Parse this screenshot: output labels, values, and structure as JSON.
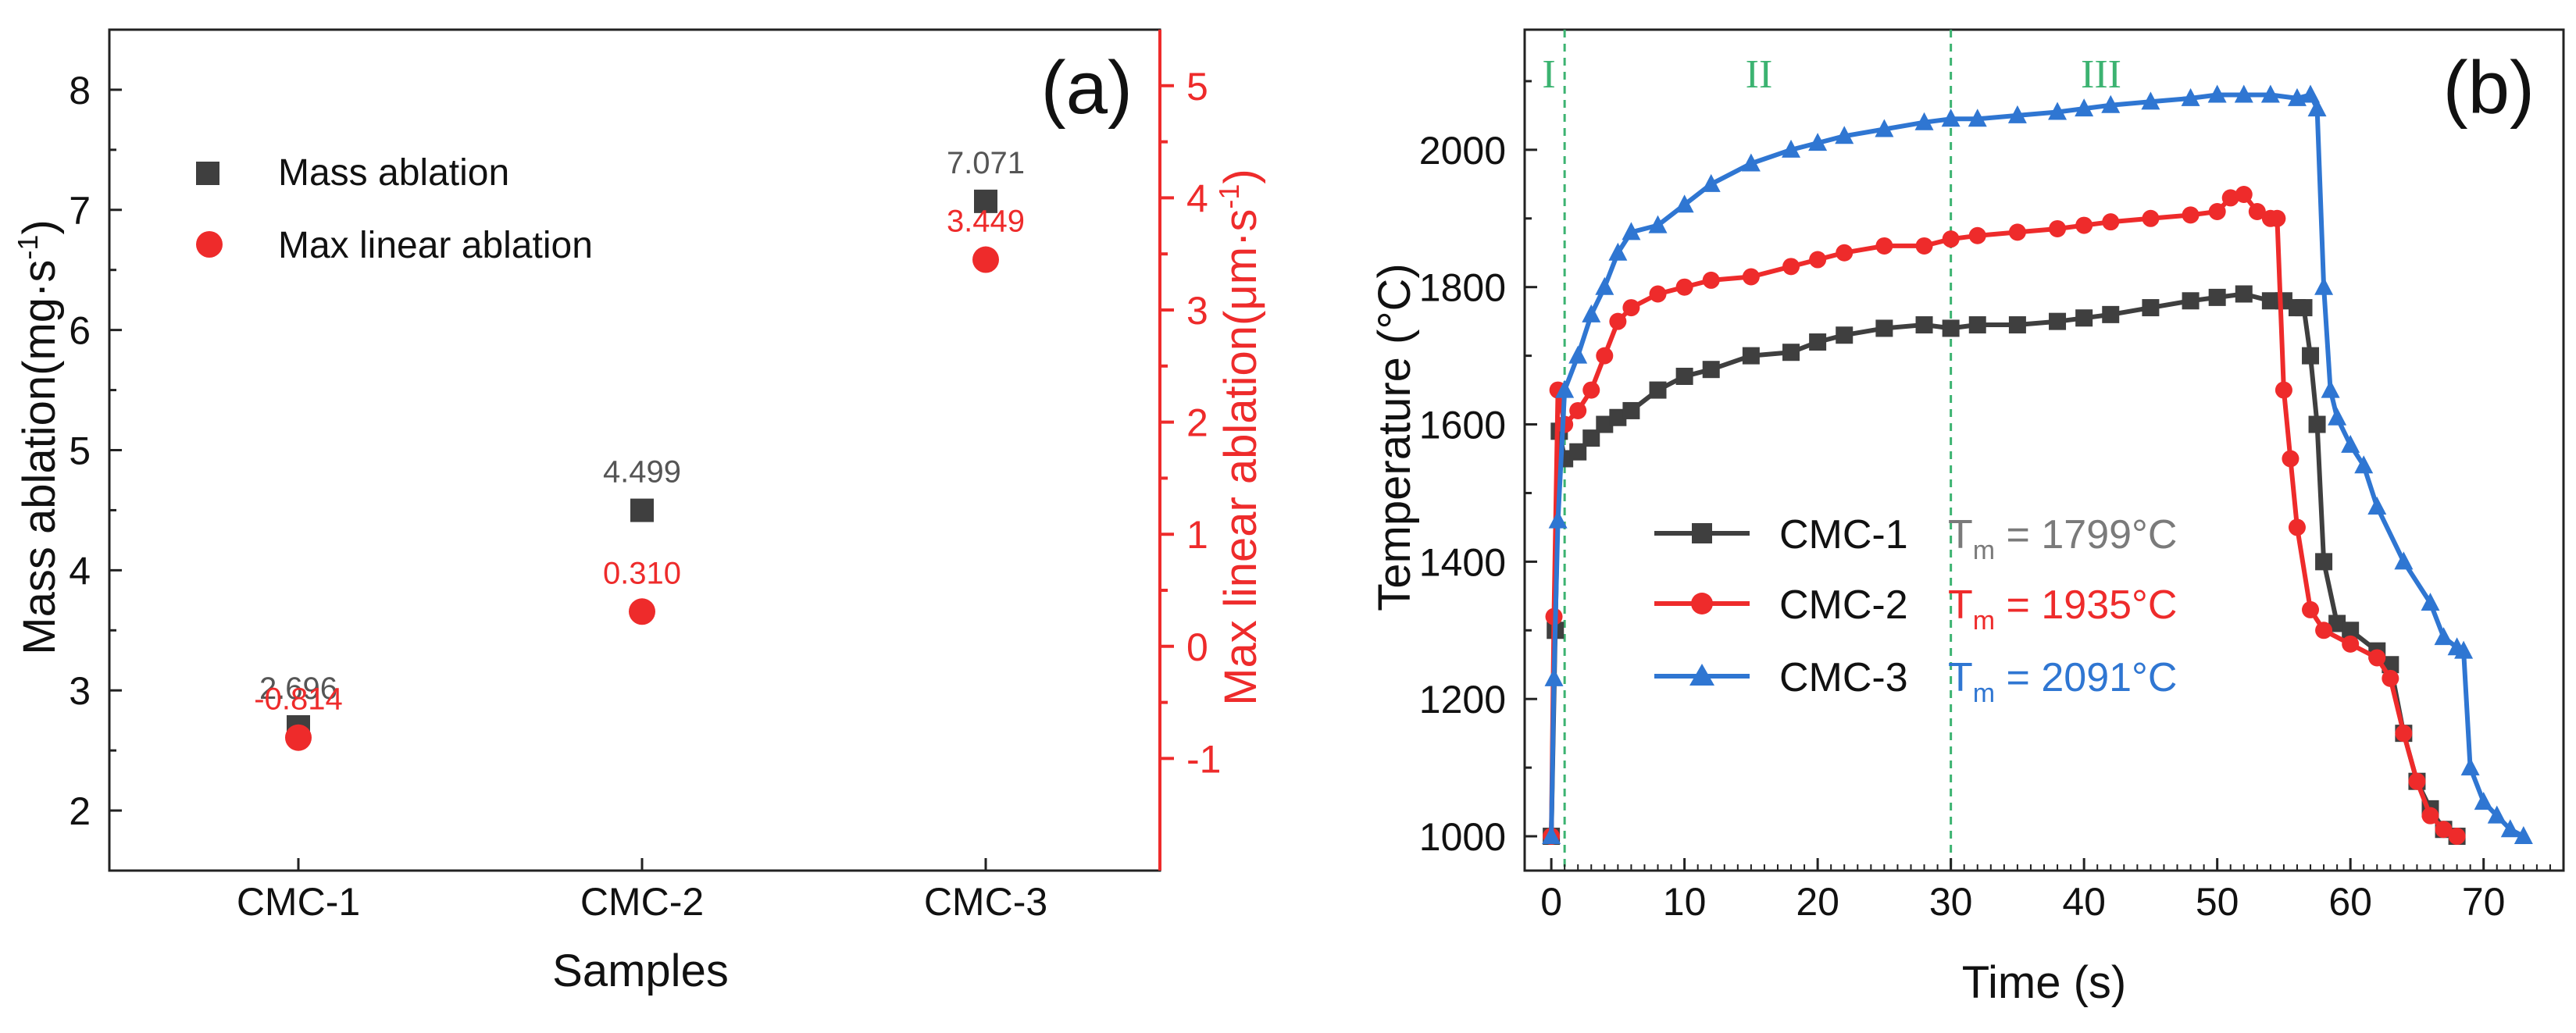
{
  "chart_data": [
    {
      "type": "scatter",
      "panel_label": "(a)",
      "title": "",
      "xlabel": "Samples",
      "ylabel": "Mass ablation(mg·s",
      "ylabel_sup": "-1",
      "ylabel_close": ")",
      "y2label": "Max linear ablation(μm·s",
      "y2label_sup": "-1",
      "y2label_close": ")",
      "categories": [
        "CMC-1",
        "CMC-2",
        "CMC-3"
      ],
      "ylim": [
        1.5,
        8.5
      ],
      "yticks": [
        "2",
        "3",
        "4",
        "5",
        "6",
        "7",
        "8"
      ],
      "y2lim": [
        -2.0,
        5.5
      ],
      "y2ticks": [
        "-1",
        "0",
        "1",
        "2",
        "3",
        "4",
        "5"
      ],
      "legend_position": "top-left",
      "colors": {
        "primary": "#3f3f3f",
        "secondary": "#ee2b2b"
      },
      "series": [
        {
          "name": "Mass ablation",
          "axis": "left",
          "marker": "square",
          "values": [
            2.696,
            4.499,
            7.071
          ],
          "labels": [
            "2.696",
            "4.499",
            "7.071"
          ]
        },
        {
          "name": "Max linear ablation",
          "axis": "right",
          "marker": "circle",
          "values": [
            -0.814,
            0.31,
            3.449
          ],
          "labels": [
            "-0.814",
            "0.310",
            "3.449"
          ]
        }
      ]
    },
    {
      "type": "line",
      "panel_label": "(b)",
      "title": "",
      "xlabel": "Time (s)",
      "ylabel": "Temperature (°C)",
      "xlim": [
        -2,
        76
      ],
      "xticks": [
        "0",
        "10",
        "20",
        "30",
        "40",
        "50",
        "60",
        "70"
      ],
      "ylim": [
        950,
        2175
      ],
      "yticks": [
        "1000",
        "1200",
        "1400",
        "1600",
        "1800",
        "2000"
      ],
      "stage_lines_x": [
        1,
        30
      ],
      "stage_labels": [
        "I",
        "II",
        "III"
      ],
      "stage_color": "#3cb371",
      "legend_position": "bottom-center",
      "series": [
        {
          "name": "CMC-1",
          "marker": "square",
          "color": "#3f3f3f",
          "tm_label": "T",
          "tm_sub": "m",
          "tm_value": " = 1799°C",
          "x": [
            0,
            0.3,
            0.6,
            1,
            2,
            3,
            4,
            5,
            6,
            8,
            10,
            12,
            15,
            18,
            20,
            22,
            25,
            28,
            30,
            32,
            35,
            38,
            40,
            42,
            45,
            48,
            50,
            52,
            54,
            55,
            56,
            56.5,
            57,
            57.5,
            58,
            59,
            60,
            62,
            63,
            64,
            65,
            66,
            67,
            68
          ],
          "y": [
            1000,
            1300,
            1590,
            1550,
            1560,
            1580,
            1600,
            1610,
            1620,
            1650,
            1670,
            1680,
            1700,
            1705,
            1720,
            1730,
            1740,
            1745,
            1740,
            1745,
            1745,
            1750,
            1755,
            1760,
            1770,
            1780,
            1785,
            1790,
            1780,
            1780,
            1770,
            1770,
            1700,
            1600,
            1400,
            1310,
            1300,
            1270,
            1250,
            1150,
            1080,
            1040,
            1010,
            1000
          ]
        },
        {
          "name": "CMC-2",
          "marker": "circle",
          "color": "#ee2b2b",
          "tm_label": "T",
          "tm_sub": "m",
          "tm_value": " = 1935°C",
          "x": [
            0,
            0.2,
            0.5,
            1,
            2,
            3,
            4,
            5,
            6,
            8,
            10,
            12,
            15,
            18,
            20,
            22,
            25,
            28,
            30,
            32,
            35,
            38,
            40,
            42,
            45,
            48,
            50,
            51,
            52,
            53,
            54,
            54.5,
            55,
            55.5,
            56,
            57,
            58,
            60,
            62,
            63,
            64,
            65,
            66,
            67,
            68
          ],
          "y": [
            1000,
            1320,
            1650,
            1600,
            1620,
            1650,
            1700,
            1750,
            1770,
            1790,
            1800,
            1810,
            1815,
            1830,
            1840,
            1850,
            1860,
            1860,
            1870,
            1875,
            1880,
            1885,
            1890,
            1895,
            1900,
            1905,
            1910,
            1930,
            1935,
            1910,
            1900,
            1900,
            1650,
            1550,
            1450,
            1330,
            1300,
            1280,
            1260,
            1230,
            1150,
            1080,
            1030,
            1010,
            1000
          ]
        },
        {
          "name": "CMC-3",
          "marker": "triangle",
          "color": "#2f76d2",
          "tm_label": "T",
          "tm_sub": "m",
          "tm_value": " = 2091°C",
          "x": [
            0,
            0.2,
            0.5,
            1,
            2,
            3,
            4,
            5,
            6,
            8,
            10,
            12,
            15,
            18,
            20,
            22,
            25,
            28,
            30,
            32,
            35,
            38,
            40,
            42,
            45,
            48,
            50,
            52,
            54,
            56,
            57,
            57.5,
            58,
            58.5,
            59,
            60,
            61,
            62,
            64,
            66,
            67,
            68,
            68.5,
            69,
            70,
            71,
            72,
            73
          ],
          "y": [
            1000,
            1230,
            1460,
            1650,
            1700,
            1760,
            1800,
            1850,
            1880,
            1890,
            1920,
            1950,
            1980,
            2000,
            2010,
            2020,
            2030,
            2040,
            2045,
            2045,
            2050,
            2055,
            2060,
            2065,
            2070,
            2075,
            2080,
            2080,
            2080,
            2075,
            2080,
            2060,
            1800,
            1650,
            1610,
            1570,
            1540,
            1480,
            1400,
            1340,
            1290,
            1275,
            1270,
            1100,
            1050,
            1030,
            1010,
            1000
          ]
        }
      ]
    }
  ]
}
